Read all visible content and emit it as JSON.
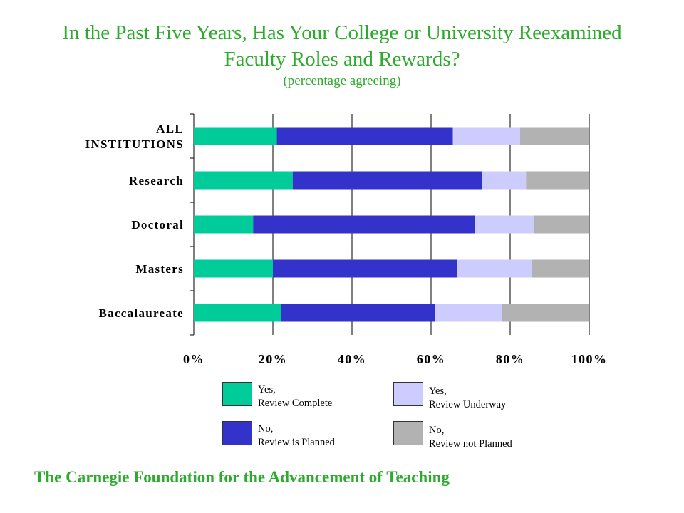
{
  "title_lines": [
    "In the Past Five Years, Has Your College or University Reexamined",
    "Faculty Roles and Rewards?"
  ],
  "subtitle": "(percentage agreeing)",
  "footer": "The Carnegie Foundation for the Advancement of Teaching",
  "legend": [
    {
      "line1": "Yes,",
      "line2": "Review Complete",
      "color": "#00cc99"
    },
    {
      "line1": "No,",
      "line2": "Review is Planned",
      "color": "#3333cc"
    },
    {
      "line1": "Yes,",
      "line2": "Review Underway",
      "color": "#ccccff"
    },
    {
      "line1": "No,",
      "line2": "Review not Planned",
      "color": "#b2b2b2"
    }
  ],
  "chart_data": {
    "type": "bar",
    "orientation": "horizontal",
    "stacked": true,
    "categories": [
      [
        "ALL",
        "INSTITUTIONS"
      ],
      [
        "Research"
      ],
      [
        "Doctoral"
      ],
      [
        "Masters"
      ],
      [
        "Baccalaureate"
      ]
    ],
    "series": [
      {
        "name": "Yes, Review Complete",
        "color": "#00cc99",
        "values": [
          21,
          25,
          15,
          20,
          22
        ]
      },
      {
        "name": "No, Review is Planned",
        "color": "#3333cc",
        "values": [
          44.5,
          48,
          56,
          46.5,
          39
        ]
      },
      {
        "name": "Yes, Review Underway",
        "color": "#ccccff",
        "values": [
          17,
          11,
          15,
          19,
          17
        ]
      },
      {
        "name": "No, Review not Planned",
        "color": "#b2b2b2",
        "values": [
          17.5,
          16,
          14,
          14.5,
          22
        ]
      }
    ],
    "xlim": [
      0,
      100
    ],
    "x_ticks": [
      "0%",
      "20%",
      "40%",
      "60%",
      "80%",
      "100%"
    ],
    "grid": true,
    "legend_position": "bottom"
  }
}
